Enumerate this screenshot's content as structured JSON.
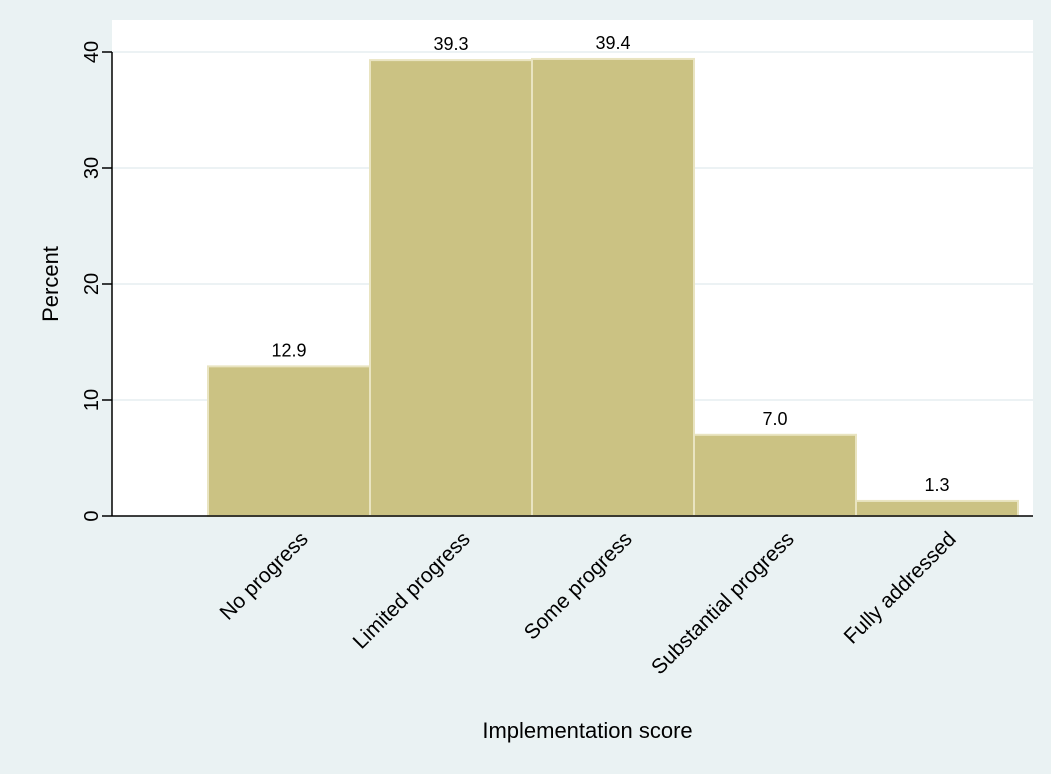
{
  "chart_data": {
    "type": "bar",
    "title": "",
    "xlabel": "Implementation score",
    "ylabel": "Percent",
    "categories": [
      "No progress",
      "Limited progress",
      "Some progress",
      "Substantial progress",
      "Fully addressed"
    ],
    "values": [
      12.9,
      39.3,
      39.4,
      7.0,
      1.3
    ],
    "data_labels": [
      "12.9",
      "39.3",
      "39.4",
      "7.0",
      "1.3"
    ],
    "yticks": [
      0,
      10,
      20,
      30,
      40
    ],
    "ylim": [
      0,
      40
    ],
    "grid": true,
    "legend": "none"
  },
  "colors": {
    "background": "#eaf2f3",
    "plot_background": "#ffffff",
    "bar_fill": "#cbc283",
    "bar_stroke": "#e9e4c1",
    "grid": "#e6eef0",
    "axis": "#000000"
  }
}
